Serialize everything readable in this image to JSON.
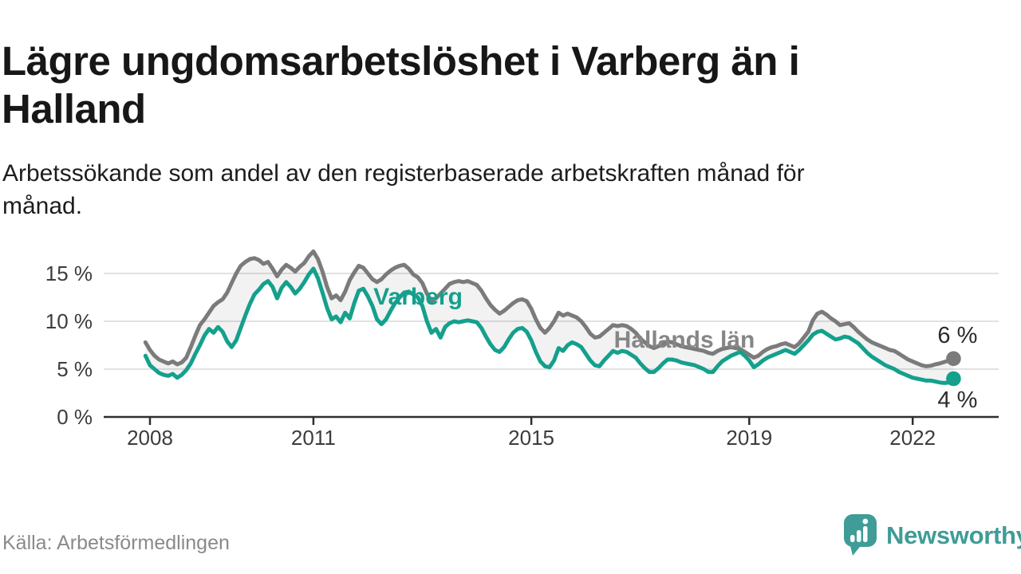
{
  "header": {
    "title": "Lägre ungdomsarbetslöshet i Varberg än i Halland",
    "title_lines": [
      "Lägre ungdomsarbetslöshet i Varberg än i",
      "Halland"
    ],
    "subtitle": "Arbetssökande som andel av den registerbaserade arbetskraften månad för månad.",
    "subtitle_lines": [
      "Arbetssökande som andel av den registerbaserade arbetskraften månad för",
      "månad."
    ]
  },
  "footer": {
    "source": "Källa: Arbetsförmedlingen",
    "brand": "Newsworthy",
    "brand_color": "#3f9c97"
  },
  "chart_data": {
    "type": "line",
    "title": "Lägre ungdomsarbetslöshet i Varberg än i Halland",
    "unit": "%",
    "frequency": "monthly",
    "start_month": "2007-12",
    "end_month": "2022-10",
    "grid": "horizontal",
    "ylim": [
      0,
      18
    ],
    "x_ticks": [
      2008,
      2011,
      2015,
      2019,
      2022
    ],
    "x_tick_labels": [
      "2008",
      "2011",
      "2015",
      "2019",
      "2022"
    ],
    "y_ticks": [
      {
        "label": "15 %",
        "value": 15
      },
      {
        "label": "10 %",
        "value": 10
      },
      {
        "label": "5 %",
        "value": 5
      },
      {
        "label": "0 %",
        "value": 0
      }
    ],
    "series": [
      {
        "name": "Hallands län",
        "color": "#7b7b7b",
        "end_label": "6 %",
        "end_label_pos": "above",
        "values": [
          7.8,
          7.0,
          6.4,
          6.0,
          5.8,
          5.6,
          5.8,
          5.5,
          5.7,
          6.2,
          7.3,
          8.5,
          9.6,
          10.2,
          10.9,
          11.6,
          12.0,
          12.3,
          13.0,
          14.0,
          15.0,
          15.8,
          16.2,
          16.5,
          16.6,
          16.4,
          16.0,
          16.2,
          15.5,
          14.7,
          15.4,
          15.9,
          15.6,
          15.2,
          15.7,
          16.1,
          16.8,
          17.3,
          16.5,
          15.2,
          13.6,
          12.4,
          12.7,
          12.2,
          13.1,
          14.3,
          15.1,
          15.8,
          15.6,
          15.0,
          14.4,
          14.1,
          14.4,
          14.9,
          15.3,
          15.6,
          15.8,
          15.9,
          15.5,
          14.9,
          14.6,
          14.0,
          12.9,
          12.1,
          12.4,
          12.9,
          13.4,
          13.9,
          14.1,
          14.2,
          14.1,
          14.2,
          14.0,
          13.8,
          13.2,
          12.4,
          11.7,
          11.2,
          10.8,
          11.1,
          11.5,
          11.9,
          12.2,
          12.3,
          12.1,
          11.3,
          10.2,
          9.3,
          8.8,
          9.3,
          10.0,
          10.9,
          10.6,
          10.8,
          10.6,
          10.4,
          10.0,
          9.4,
          8.7,
          8.3,
          8.4,
          8.8,
          9.2,
          9.6,
          9.5,
          9.6,
          9.5,
          9.2,
          8.8,
          8.2,
          7.8,
          7.4,
          7.2,
          7.4,
          7.6,
          7.9,
          7.8,
          7.6,
          7.4,
          7.3,
          7.2,
          7.1,
          7.0,
          6.9,
          6.7,
          6.6,
          6.9,
          7.1,
          7.2,
          7.3,
          7.2,
          7.1,
          6.8,
          6.5,
          6.2,
          6.4,
          6.8,
          7.1,
          7.3,
          7.4,
          7.6,
          7.7,
          7.5,
          7.3,
          7.7,
          8.3,
          8.9,
          10.1,
          10.8,
          11.0,
          10.7,
          10.3,
          10.0,
          9.6,
          9.7,
          9.8,
          9.4,
          8.9,
          8.5,
          8.1,
          7.8,
          7.6,
          7.4,
          7.2,
          7.0,
          6.9,
          6.6,
          6.3,
          6.0,
          5.8,
          5.6,
          5.4,
          5.3,
          5.35,
          5.5,
          5.6,
          5.75,
          5.9,
          6.1
        ]
      },
      {
        "name": "Varberg",
        "color": "#14a08d",
        "end_label": "4 %",
        "end_label_pos": "below",
        "values": [
          6.4,
          5.4,
          5.0,
          4.6,
          4.4,
          4.3,
          4.5,
          4.1,
          4.4,
          4.9,
          5.6,
          6.6,
          7.5,
          8.5,
          9.2,
          8.8,
          9.4,
          8.9,
          7.9,
          7.3,
          8.0,
          9.3,
          10.6,
          11.8,
          12.8,
          13.3,
          13.9,
          14.2,
          13.6,
          12.4,
          13.5,
          14.1,
          13.6,
          12.9,
          13.4,
          14.1,
          14.9,
          15.5,
          14.5,
          13.0,
          11.4,
          10.2,
          10.5,
          9.9,
          10.9,
          10.3,
          11.9,
          13.2,
          13.4,
          12.6,
          11.6,
          10.2,
          9.7,
          10.2,
          11.1,
          11.9,
          12.5,
          13.0,
          13.1,
          12.8,
          12.5,
          11.6,
          10.0,
          8.8,
          9.2,
          8.3,
          9.4,
          9.8,
          10.0,
          9.9,
          10.0,
          10.1,
          10.0,
          9.9,
          9.3,
          8.4,
          7.6,
          7.0,
          6.8,
          7.3,
          8.1,
          8.8,
          9.2,
          9.3,
          8.9,
          8.0,
          6.8,
          5.8,
          5.3,
          5.2,
          5.9,
          7.2,
          6.9,
          7.5,
          7.8,
          7.6,
          7.3,
          6.6,
          5.9,
          5.4,
          5.3,
          5.9,
          6.4,
          6.9,
          6.7,
          6.9,
          6.8,
          6.5,
          6.2,
          5.6,
          5.1,
          4.7,
          4.7,
          5.1,
          5.6,
          6.0,
          6.0,
          5.9,
          5.7,
          5.6,
          5.5,
          5.4,
          5.2,
          5.0,
          4.7,
          4.7,
          5.3,
          5.8,
          6.1,
          6.4,
          6.6,
          6.8,
          6.4,
          5.9,
          5.2,
          5.5,
          5.9,
          6.2,
          6.4,
          6.6,
          6.8,
          7.0,
          6.8,
          6.6,
          7.0,
          7.5,
          8.0,
          8.6,
          8.9,
          9.0,
          8.7,
          8.4,
          8.1,
          8.2,
          8.4,
          8.3,
          8.0,
          7.7,
          7.2,
          6.7,
          6.3,
          6.0,
          5.7,
          5.4,
          5.2,
          5.0,
          4.7,
          4.5,
          4.3,
          4.1,
          4.0,
          3.9,
          3.8,
          3.8,
          3.7,
          3.6,
          3.55,
          3.6,
          4.0
        ]
      }
    ],
    "annotations": [
      {
        "text": "Varberg",
        "year": 2012.92,
        "value": 12.5,
        "series": "Varberg"
      },
      {
        "text": "Hallands län",
        "year": 2017.81,
        "value": 8.0,
        "series": "Hallands län"
      }
    ],
    "legend_position": "inline-labels"
  }
}
